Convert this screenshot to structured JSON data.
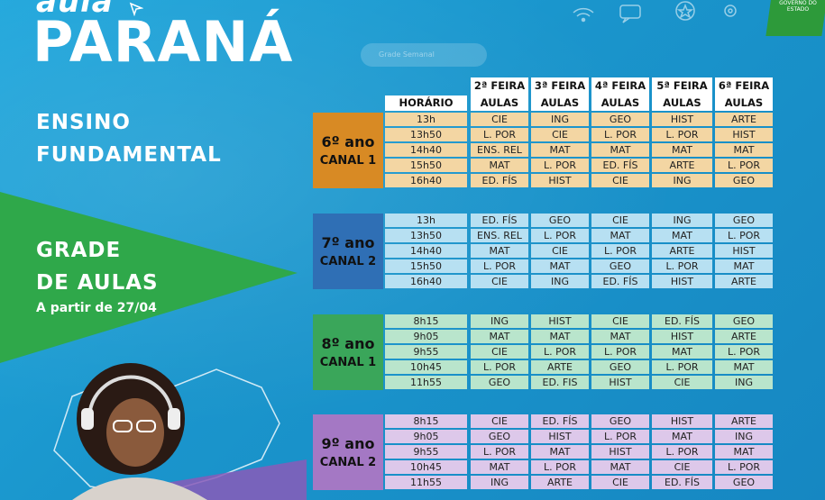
{
  "brand": {
    "top_word": "aula",
    "name": "PARANÁ"
  },
  "search_placeholder": "Grade Semanal",
  "government_badge": "GOVERNO DO ESTADO",
  "left_panel": {
    "ensino_line1": "ENSINO",
    "ensino_line2": "FUNDAMENTAL",
    "grade_line1": "GRADE",
    "grade_line2": "DE AULAS",
    "start_date": "A partir de 27/04"
  },
  "colors": {
    "background": "#1f9fd4",
    "green_band": "#2fa84a",
    "block1_label": "#d88a24",
    "block1_cells": "#f3d6a3",
    "block2_label": "#2f6fb5",
    "block2_cells": "#b7e0f2",
    "block3_label": "#3aa65a",
    "block3_cells": "#b9e5cc",
    "block4_label": "#a478c4",
    "block4_cells": "#ddc8ea"
  },
  "headers": {
    "horario": "HORÁRIO",
    "days": [
      {
        "day": "2ª FEIRA",
        "sub": "AULAS"
      },
      {
        "day": "3ª FEIRA",
        "sub": "AULAS"
      },
      {
        "day": "4ª FEIRA",
        "sub": "AULAS"
      },
      {
        "day": "5ª FEIRA",
        "sub": "AULAS"
      },
      {
        "day": "6ª FEIRA",
        "sub": "AULAS"
      }
    ]
  },
  "blocks": [
    {
      "ano": "6º ano",
      "canal": "CANAL 1",
      "rows": [
        [
          "13h",
          "CIE",
          "ING",
          "GEO",
          "HIST",
          "ARTE"
        ],
        [
          "13h50",
          "L. POR",
          "CIE",
          "L. POR",
          "L. POR",
          "HIST"
        ],
        [
          "14h40",
          "ENS. REL",
          "MAT",
          "MAT",
          "MAT",
          "MAT"
        ],
        [
          "15h50",
          "MAT",
          "L. POR",
          "ED. FÍS",
          "ARTE",
          "L. POR"
        ],
        [
          "16h40",
          "ED. FÍS",
          "HIST",
          "CIE",
          "ING",
          "GEO"
        ]
      ]
    },
    {
      "ano": "7º ano",
      "canal": "CANAL 2",
      "rows": [
        [
          "13h",
          "ED. FÍS",
          "GEO",
          "CIE",
          "ING",
          "GEO"
        ],
        [
          "13h50",
          "ENS. REL",
          "L. POR",
          "MAT",
          "MAT",
          "L. POR"
        ],
        [
          "14h40",
          "MAT",
          "CIE",
          "L. POR",
          "ARTE",
          "HIST"
        ],
        [
          "15h50",
          "L. POR",
          "MAT",
          "GEO",
          "L. POR",
          "MAT"
        ],
        [
          "16h40",
          "CIE",
          "ING",
          "ED. FÍS",
          "HIST",
          "ARTE"
        ]
      ]
    },
    {
      "ano": "8º ano",
      "canal": "CANAL 1",
      "rows": [
        [
          "8h15",
          "ING",
          "HIST",
          "CIE",
          "ED. FÍS",
          "GEO"
        ],
        [
          "9h05",
          "MAT",
          "MAT",
          "MAT",
          "HIST",
          "ARTE"
        ],
        [
          "9h55",
          "CIE",
          "L. POR",
          "L. POR",
          "MAT",
          "L. POR"
        ],
        [
          "10h45",
          "L. POR",
          "ARTE",
          "GEO",
          "L. POR",
          "MAT"
        ],
        [
          "11h55",
          "GEO",
          "ED. FIS",
          "HIST",
          "CIE",
          "ING"
        ]
      ]
    },
    {
      "ano": "9º ano",
      "canal": "CANAL 2",
      "rows": [
        [
          "8h15",
          "CIE",
          "ED. FÍS",
          "GEO",
          "HIST",
          "ARTE"
        ],
        [
          "9h05",
          "GEO",
          "HIST",
          "L. POR",
          "MAT",
          "ING"
        ],
        [
          "9h55",
          "L. POR",
          "MAT",
          "HIST",
          "L. POR",
          "MAT"
        ],
        [
          "10h45",
          "MAT",
          "L. POR",
          "MAT",
          "CIE",
          "L. POR"
        ],
        [
          "11h55",
          "ING",
          "ARTE",
          "CIE",
          "ED. FÍS",
          "GEO"
        ]
      ]
    }
  ]
}
